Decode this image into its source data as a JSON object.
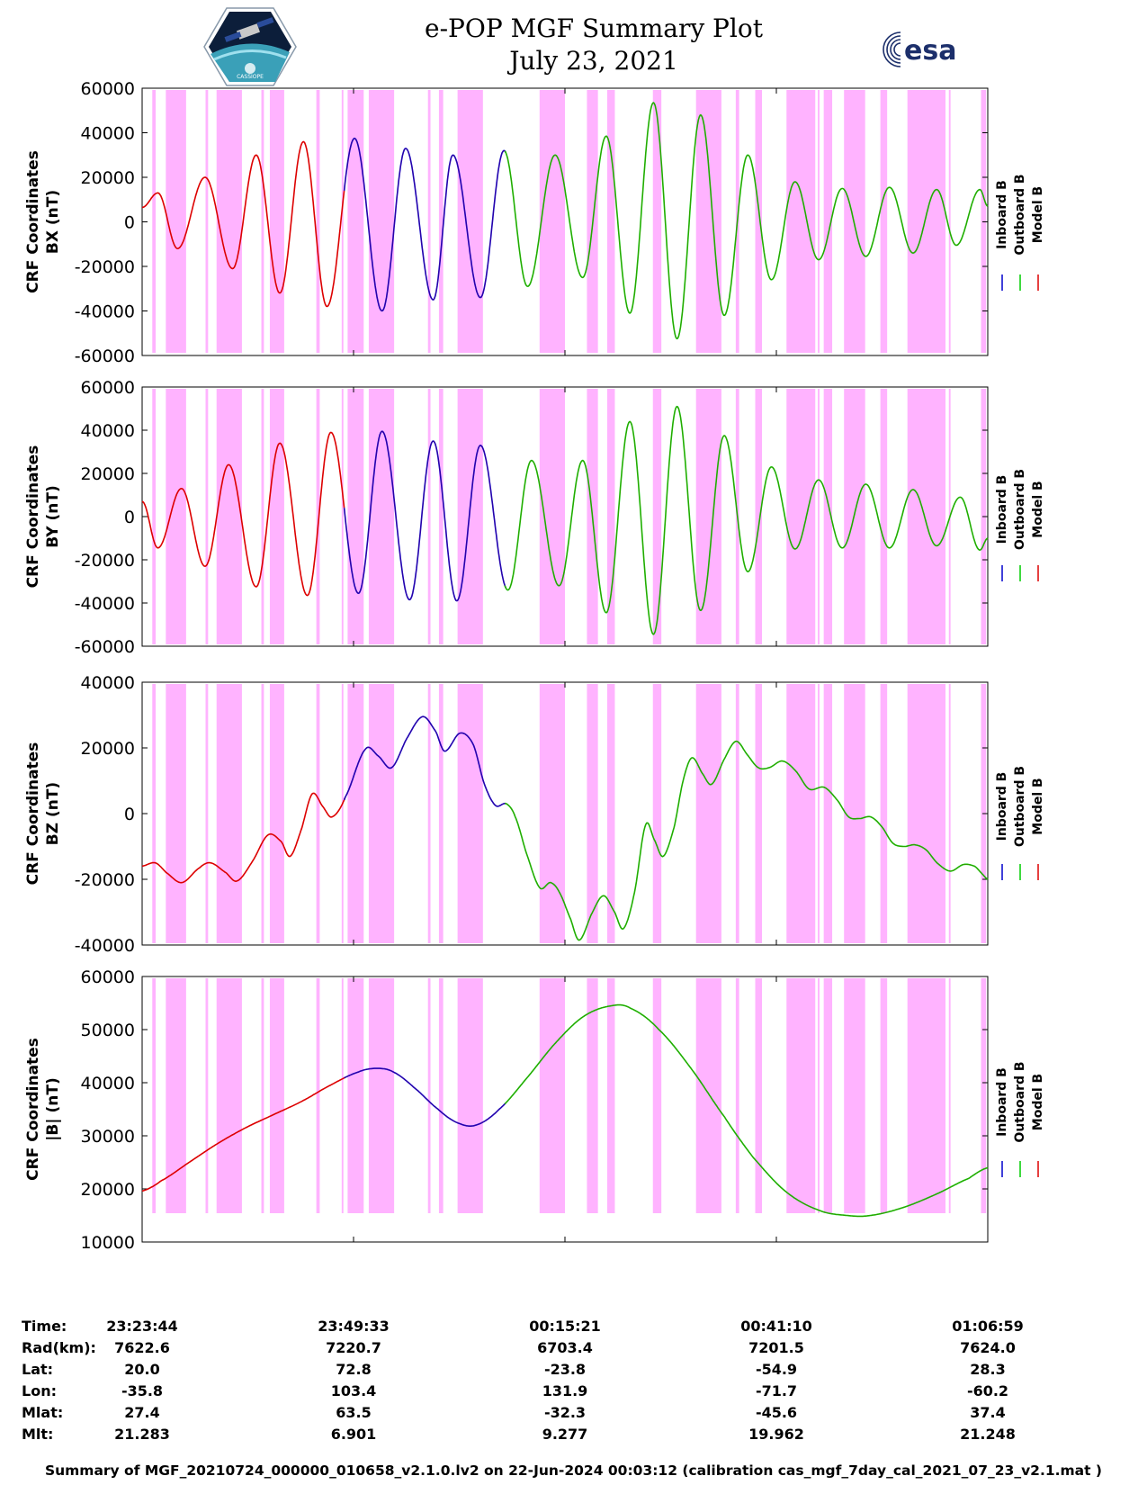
{
  "header": {
    "title_line1": "e-POP MGF Summary Plot",
    "title_line2": "July 23, 2021",
    "logo_left_text": "CASSIOPE",
    "logo_right_text": "esa"
  },
  "legend": [
    "Inboard B",
    "Outboard B",
    "Model B"
  ],
  "colors": {
    "inboard": "#0000cc",
    "outboard": "#00cc00",
    "model": "#dd0000",
    "shade": "#ffb3ff"
  },
  "chart_data": [
    {
      "type": "line",
      "name": "bx",
      "ylabel": [
        "CRF Coordinates",
        "BX (nT)"
      ],
      "ylim": [
        -60000,
        60000
      ],
      "yticks": [
        "60000",
        "40000",
        "20000",
        "0",
        "-20000",
        "-40000",
        "-60000"
      ],
      "shape": "sine",
      "peaks": [
        [
          0.0,
          6500
        ],
        [
          0.04,
          13000
        ],
        [
          0.09,
          -12000
        ],
        [
          0.16,
          20000
        ],
        [
          0.23,
          -21000
        ],
        [
          0.29,
          30000
        ],
        [
          0.35,
          -32000
        ],
        [
          0.41,
          36000
        ],
        [
          0.47,
          -38000
        ],
        [
          0.54,
          37500
        ],
        [
          0.61,
          -40000
        ],
        [
          0.67,
          33000
        ],
        [
          0.74,
          -35000
        ],
        [
          0.79,
          30000
        ],
        [
          0.86,
          -34000
        ],
        [
          0.92,
          32000
        ],
        [
          0.98,
          -29000
        ],
        [
          1.05,
          30000
        ],
        [
          1.12,
          -25000
        ],
        [
          1.18,
          38500
        ],
        [
          1.24,
          -41000
        ],
        [
          1.3,
          53500
        ],
        [
          1.36,
          -52500
        ],
        [
          1.42,
          48000
        ],
        [
          1.48,
          -42000
        ],
        [
          1.54,
          30000
        ],
        [
          1.6,
          -26000
        ],
        [
          1.66,
          18000
        ],
        [
          1.72,
          -17000
        ],
        [
          1.78,
          15000
        ],
        [
          1.84,
          -15500
        ],
        [
          1.9,
          15500
        ],
        [
          1.96,
          -14000
        ],
        [
          2.02,
          14500
        ],
        [
          2.07,
          -10500
        ],
        [
          2.13,
          14500
        ],
        [
          2.15,
          7000
        ]
      ]
    },
    {
      "type": "line",
      "name": "by",
      "ylabel": [
        "CRF Coordinates",
        "BY (nT)"
      ],
      "ylim": [
        -60000,
        60000
      ],
      "yticks": [
        "60000",
        "40000",
        "20000",
        "0",
        "-20000",
        "-40000",
        "-60000"
      ],
      "shape": "sine",
      "peaks": [
        [
          0.0,
          7000
        ],
        [
          0.04,
          -14500
        ],
        [
          0.1,
          13000
        ],
        [
          0.16,
          -23000
        ],
        [
          0.22,
          24000
        ],
        [
          0.29,
          -32500
        ],
        [
          0.35,
          34000
        ],
        [
          0.42,
          -36500
        ],
        [
          0.48,
          39000
        ],
        [
          0.55,
          -35500
        ],
        [
          0.61,
          39500
        ],
        [
          0.68,
          -38500
        ],
        [
          0.74,
          35000
        ],
        [
          0.8,
          -39000
        ],
        [
          0.86,
          33000
        ],
        [
          0.93,
          -34000
        ],
        [
          0.99,
          26000
        ],
        [
          1.06,
          -32000
        ],
        [
          1.12,
          26000
        ],
        [
          1.18,
          -44500
        ],
        [
          1.24,
          44000
        ],
        [
          1.3,
          -54500
        ],
        [
          1.36,
          51000
        ],
        [
          1.42,
          -43500
        ],
        [
          1.48,
          37500
        ],
        [
          1.54,
          -25500
        ],
        [
          1.6,
          23000
        ],
        [
          1.66,
          -15000
        ],
        [
          1.72,
          17000
        ],
        [
          1.78,
          -14500
        ],
        [
          1.84,
          15000
        ],
        [
          1.9,
          -14500
        ],
        [
          1.96,
          12500
        ],
        [
          2.02,
          -13500
        ],
        [
          2.08,
          9000
        ],
        [
          2.13,
          -15500
        ],
        [
          2.15,
          -10000
        ]
      ]
    },
    {
      "type": "line",
      "name": "bz",
      "ylabel": [
        "CRF Coordinates",
        "BZ (nT)"
      ],
      "ylim": [
        -40000,
        40000
      ],
      "yticks": [
        "40000",
        "20000",
        "0",
        "-20000",
        "-40000"
      ],
      "shape": "smooth",
      "points": [
        [
          0.0,
          -16000
        ],
        [
          0.03,
          -15000
        ],
        [
          0.055,
          -18000
        ],
        [
          0.09,
          -21000
        ],
        [
          0.13,
          -16500
        ],
        [
          0.155,
          -15000
        ],
        [
          0.19,
          -18000
        ],
        [
          0.215,
          -20500
        ],
        [
          0.25,
          -14500
        ],
        [
          0.285,
          -6500
        ],
        [
          0.315,
          -8500
        ],
        [
          0.335,
          -13000
        ],
        [
          0.36,
          -5000
        ],
        [
          0.385,
          6000
        ],
        [
          0.41,
          2000
        ],
        [
          0.43,
          -1000
        ],
        [
          0.46,
          5000
        ],
        [
          0.505,
          19500
        ],
        [
          0.535,
          17500
        ],
        [
          0.565,
          14000
        ],
        [
          0.6,
          23000
        ],
        [
          0.635,
          29500
        ],
        [
          0.665,
          25000
        ],
        [
          0.685,
          19000
        ],
        [
          0.72,
          24500
        ],
        [
          0.75,
          21000
        ],
        [
          0.775,
          9000
        ],
        [
          0.8,
          2500
        ],
        [
          0.825,
          3000
        ],
        [
          0.845,
          -1000
        ],
        [
          0.87,
          -12000
        ],
        [
          0.9,
          -22500
        ],
        [
          0.925,
          -21000
        ],
        [
          0.945,
          -24000
        ],
        [
          0.97,
          -32000
        ],
        [
          0.99,
          -38500
        ],
        [
          1.02,
          -30000
        ],
        [
          1.045,
          -25000
        ],
        [
          1.07,
          -30000
        ],
        [
          1.09,
          -35000
        ],
        [
          1.115,
          -24000
        ],
        [
          1.14,
          -3500
        ],
        [
          1.16,
          -8000
        ],
        [
          1.18,
          -13000
        ],
        [
          1.205,
          -4000
        ],
        [
          1.225,
          10000
        ],
        [
          1.245,
          17000
        ],
        [
          1.27,
          12000
        ],
        [
          1.29,
          9000
        ],
        [
          1.32,
          17000
        ],
        [
          1.345,
          22000
        ],
        [
          1.37,
          18000
        ],
        [
          1.395,
          14000
        ],
        [
          1.42,
          14000
        ],
        [
          1.45,
          16000
        ],
        [
          1.48,
          13000
        ],
        [
          1.51,
          7500
        ],
        [
          1.545,
          8000
        ],
        [
          1.575,
          4000
        ],
        [
          1.6,
          -1000
        ],
        [
          1.625,
          -1500
        ],
        [
          1.65,
          -1000
        ],
        [
          1.675,
          -4000
        ],
        [
          1.7,
          -9000
        ],
        [
          1.725,
          -10000
        ],
        [
          1.75,
          -9500
        ],
        [
          1.775,
          -11000
        ],
        [
          1.8,
          -15000
        ],
        [
          1.83,
          -17500
        ],
        [
          1.86,
          -15500
        ],
        [
          1.885,
          -16000
        ],
        [
          1.9,
          -18000
        ],
        [
          1.915,
          -20000
        ]
      ]
    },
    {
      "type": "line",
      "name": "bmag",
      "ylabel": [
        "CRF Coordinates",
        "|B| (nT)"
      ],
      "ylim": [
        10000,
        60000
      ],
      "yticks": [
        "60000",
        "50000",
        "40000",
        "30000",
        "20000",
        "10000"
      ],
      "shape": "smooth",
      "points": [
        [
          0.0,
          19600
        ],
        [
          0.04,
          21500
        ],
        [
          0.1,
          25000
        ],
        [
          0.16,
          28500
        ],
        [
          0.22,
          31500
        ],
        [
          0.28,
          34000
        ],
        [
          0.34,
          36500
        ],
        [
          0.4,
          39500
        ],
        [
          0.46,
          42000
        ],
        [
          0.5,
          42700
        ],
        [
          0.535,
          42000
        ],
        [
          0.58,
          39000
        ],
        [
          0.63,
          35000
        ],
        [
          0.67,
          32500
        ],
        [
          0.71,
          32000
        ],
        [
          0.76,
          35000
        ],
        [
          0.82,
          41000
        ],
        [
          0.88,
          47500
        ],
        [
          0.94,
          52500
        ],
        [
          1.0,
          54500
        ],
        [
          1.04,
          54000
        ],
        [
          1.1,
          50000
        ],
        [
          1.17,
          42500
        ],
        [
          1.24,
          33500
        ],
        [
          1.3,
          26000
        ],
        [
          1.37,
          19500
        ],
        [
          1.44,
          16000
        ],
        [
          1.5,
          15000
        ],
        [
          1.55,
          15000
        ],
        [
          1.62,
          16500
        ],
        [
          1.69,
          19000
        ],
        [
          1.76,
          22000
        ],
        [
          1.8,
          24000
        ]
      ]
    }
  ],
  "segments": {
    "description_colors": "x ranges as fraction of time axis",
    "red_end": 0.24,
    "blue_end": 0.43
  },
  "time_axis": {
    "labels": {
      "time": "Time:",
      "rad": "Rad(km):",
      "lat": "Lat:",
      "lon": "Lon:",
      "mlat": "Mlat:",
      "mlt": "Mlt:"
    },
    "ticks": [
      {
        "time": "23:23:44",
        "rad": "7622.6",
        "lat": "20.0",
        "lon": "-35.8",
        "mlat": "27.4",
        "mlt": "21.283"
      },
      {
        "time": "23:49:33",
        "rad": "7220.7",
        "lat": "72.8",
        "lon": "103.4",
        "mlat": "63.5",
        "mlt": "6.901"
      },
      {
        "time": "00:15:21",
        "rad": "6703.4",
        "lat": "-23.8",
        "lon": "131.9",
        "mlat": "-32.3",
        "mlt": "9.277"
      },
      {
        "time": "00:41:10",
        "rad": "7201.5",
        "lat": "-54.9",
        "lon": "-71.7",
        "mlat": "-45.6",
        "mlt": "19.962"
      },
      {
        "time": "01:06:59",
        "rad": "7624.0",
        "lat": "28.3",
        "lon": "-60.2",
        "mlat": "37.4",
        "mlt": "21.248"
      }
    ]
  },
  "shading": [
    [
      0.012,
      0.016
    ],
    [
      0.028,
      0.052
    ],
    [
      0.075,
      0.078
    ],
    [
      0.088,
      0.118
    ],
    [
      0.141,
      0.144
    ],
    [
      0.151,
      0.168
    ],
    [
      0.206,
      0.21
    ],
    [
      0.236,
      0.238
    ],
    [
      0.243,
      0.262
    ],
    [
      0.268,
      0.298
    ],
    [
      0.338,
      0.341
    ],
    [
      0.351,
      0.356
    ],
    [
      0.373,
      0.403
    ],
    [
      0.47,
      0.5
    ],
    [
      0.526,
      0.539
    ],
    [
      0.55,
      0.559
    ],
    [
      0.604,
      0.614
    ],
    [
      0.655,
      0.685
    ],
    [
      0.702,
      0.706
    ],
    [
      0.725,
      0.733
    ],
    [
      0.762,
      0.796
    ],
    [
      0.799,
      0.801
    ],
    [
      0.806,
      0.816
    ],
    [
      0.83,
      0.855
    ],
    [
      0.873,
      0.881
    ],
    [
      0.905,
      0.95
    ],
    [
      0.954,
      0.956
    ],
    [
      0.992,
      0.998
    ],
    [
      1.004,
      1.0
    ]
  ],
  "footer": "Summary of MGF_20210724_000000_010658_v2.1.0.lv2 on 22-Jun-2024 00:03:12 (calibration cas_mgf_7day_cal_2021_07_23_v2.1.mat )"
}
